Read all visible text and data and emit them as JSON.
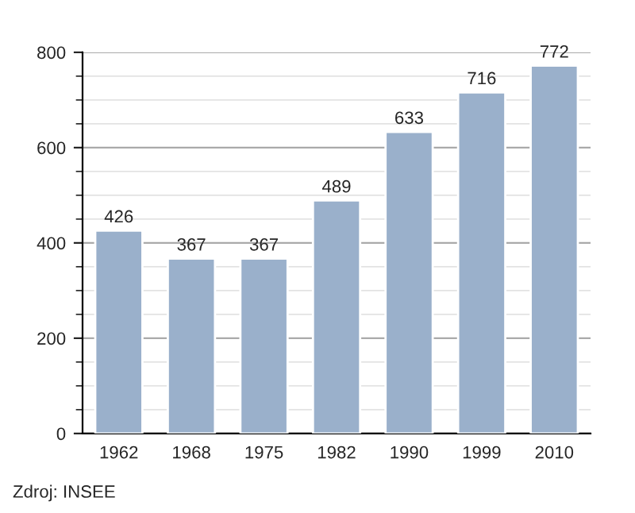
{
  "chart_data": {
    "type": "bar",
    "categories": [
      "1962",
      "1968",
      "1975",
      "1982",
      "1990",
      "1999",
      "2010"
    ],
    "values": [
      426,
      367,
      367,
      489,
      633,
      716,
      772
    ],
    "color": "#9ab0cb",
    "ylim": [
      0,
      800
    ],
    "yticks": [
      0,
      200,
      400,
      600,
      800
    ],
    "grid": "y",
    "data_labels": true,
    "annotations": [
      "Zdroj: INSEE"
    ]
  }
}
